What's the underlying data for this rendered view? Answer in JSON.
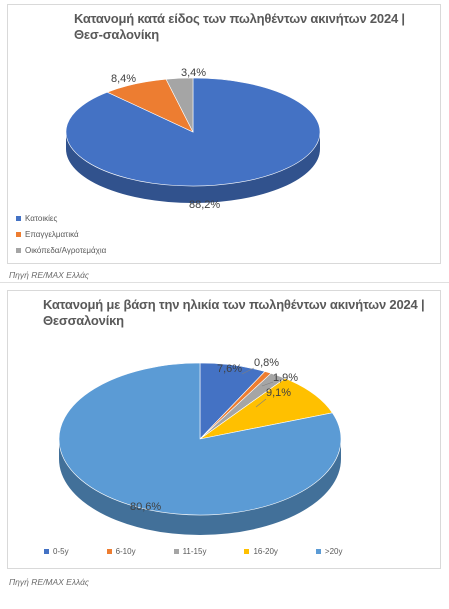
{
  "chart_data": [
    {
      "type": "pie",
      "title": "Κατανομή κατά είδος των πωληθέντων ακινήτων 2024 | Θεσ-σαλονίκη",
      "categories": [
        "Κατοικίες",
        "Επαγγελματικά",
        "Οικόπεδα/Αγροτεμάχια"
      ],
      "values": [
        88.2,
        8.4,
        3.4
      ],
      "labels": [
        "88,2%",
        "8,4%",
        "3,4%"
      ],
      "colors": [
        "#4472c4",
        "#ed7d31",
        "#a5a5a5"
      ],
      "legend": "bottom-left",
      "source": "Πηγή RE/MAX Ελλάς"
    },
    {
      "type": "pie",
      "title": "Κατανομή με βάση την ηλικία των πωληθέντων ακινήτων 2024 | Θεσσαλονίκη",
      "categories": [
        "0-5y",
        "6-10y",
        "11-15y",
        "16-20y",
        ">20y"
      ],
      "values": [
        7.6,
        0.8,
        1.9,
        9.1,
        80.6
      ],
      "labels": [
        "7,6%",
        "0,8%",
        "1,9%",
        "9,1%",
        "80,6%"
      ],
      "colors": [
        "#4472c4",
        "#ed7d31",
        "#a5a5a5",
        "#ffc000",
        "#5b9bd5"
      ],
      "legend": "bottom",
      "source": "Πηγή RE/MAX Ελλάς"
    }
  ]
}
